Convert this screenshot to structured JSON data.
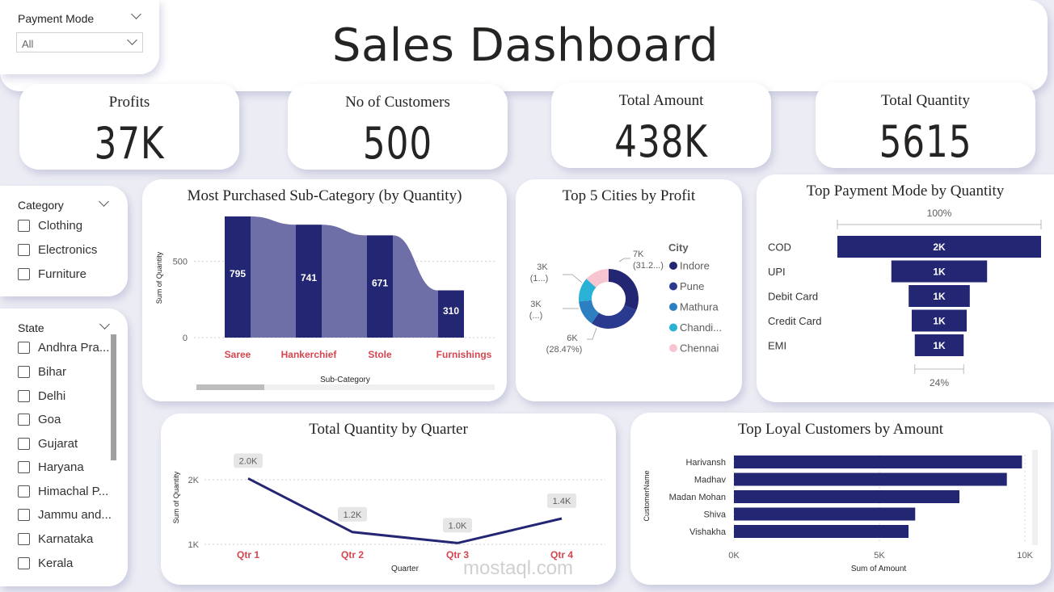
{
  "payment_slicer": {
    "title": "Payment Mode",
    "value": "All"
  },
  "dashboard_title": "Sales Dashboard",
  "kpis": [
    {
      "label": "Profits",
      "value": "37K"
    },
    {
      "label": "No of Customers",
      "value": "500"
    },
    {
      "label": "Total Amount",
      "value": "438K"
    },
    {
      "label": "Total Quantity",
      "value": "5615"
    }
  ],
  "category_slicer": {
    "title": "Category",
    "items": [
      "Clothing",
      "Electronics",
      "Furniture"
    ]
  },
  "state_slicer": {
    "title": "State",
    "items": [
      "Andhra Pra...",
      "Bihar",
      "Delhi",
      "Goa",
      "Gujarat",
      "Haryana",
      "Himachal P...",
      "Jammu and...",
      "Karnataka",
      "Kerala"
    ]
  },
  "colors": {
    "navy": "#232673",
    "lavender": "#6f6fa8",
    "label_red": "#d64550",
    "pune": "#2a3a8f",
    "mathura": "#2c7fc1",
    "chandigarh": "#29b2d5",
    "chennai": "#f7c5d0"
  },
  "chart_data": [
    {
      "id": "subcategory",
      "type": "bar",
      "title": "Most Purchased Sub-Category (by Quantity)",
      "xlabel": "Sub-Category",
      "ylabel": "Sum of Quantity",
      "categories": [
        "Saree",
        "Hankerchief",
        "Stole",
        "Furnishings"
      ],
      "values": [
        795,
        741,
        671,
        310
      ],
      "data_labels": [
        "795",
        "741",
        "671",
        "310"
      ],
      "yticks": [
        "500",
        "0"
      ],
      "ylim": [
        0,
        795
      ]
    },
    {
      "id": "cities",
      "type": "pie",
      "title": "Top 5 Cities by Profit",
      "legend_title": "City",
      "labels": [
        "Indore",
        "Pune",
        "Mathura",
        "Chandi...",
        "Chennai"
      ],
      "values": [
        31.2,
        28.47,
        14.0,
        13.0,
        13.33
      ],
      "data_labels": [
        {
          "value": "7K",
          "pct": "(31.2...)"
        },
        {
          "value": "6K",
          "pct": "(28.47%)"
        },
        {
          "value": "3K",
          "pct": "(...)"
        },
        {
          "value": "3K",
          "pct": "(1...)"
        }
      ]
    },
    {
      "id": "payment",
      "type": "bar",
      "title": "Top Payment Mode by Quantity",
      "categories": [
        "COD",
        "UPI",
        "Debit Card",
        "Credit Card",
        "EMI"
      ],
      "values": [
        2000,
        1000,
        1000,
        1000,
        1000
      ],
      "relative": [
        1.0,
        0.47,
        0.3,
        0.27,
        0.24
      ],
      "data_labels": [
        "2K",
        "1K",
        "1K",
        "1K",
        "1K"
      ],
      "top_label": "100%",
      "bottom_label": "24%"
    },
    {
      "id": "quarter",
      "type": "line",
      "title": "Total Quantity by Quarter",
      "xlabel": "Quarter",
      "ylabel": "Sum of Quantity",
      "categories": [
        "Qtr 1",
        "Qtr 2",
        "Qtr 3",
        "Qtr 4"
      ],
      "values": [
        2020,
        1190,
        1020,
        1400
      ],
      "data_labels": [
        "2.0K",
        "1.2K",
        "1.0K",
        "1.4K"
      ],
      "yticks": [
        "2K",
        "1K"
      ],
      "ylim": [
        800,
        2200
      ]
    },
    {
      "id": "customers",
      "type": "bar",
      "title": "Top Loyal Customers by Amount",
      "xlabel": "Sum of Amount",
      "ylabel": "CustomerName",
      "categories": [
        "Harivansh",
        "Madhav",
        "Madan Mohan",
        "Shiva",
        "Vishakha"
      ],
      "values": [
        9900,
        9380,
        7750,
        6230,
        6000
      ],
      "xticks": [
        "0K",
        "5K",
        "10K"
      ],
      "xlim": [
        0,
        10000
      ]
    }
  ],
  "watermark": {
    "text": "mostaql.com"
  }
}
